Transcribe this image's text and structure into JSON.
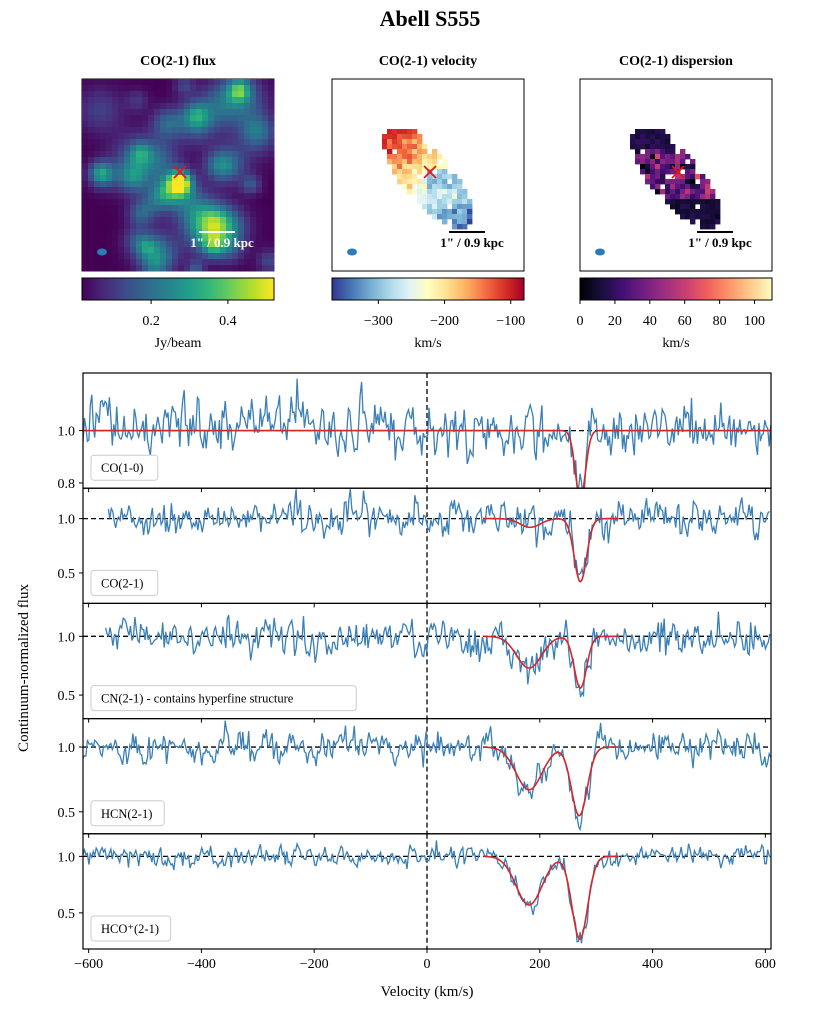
{
  "figure": {
    "title": "Abell S555"
  },
  "maps": [
    {
      "title": "CO(2-1) flux",
      "colorbar_label": "Jy/beam",
      "colormap": "viridis",
      "colorbar_range": [
        0.02,
        0.52
      ],
      "colorbar_ticks": [
        0.2,
        0.4
      ],
      "colorbar_tick_labels": [
        "0.2",
        "0.4"
      ],
      "scalebar_label": "1\" / 0.9 kpc",
      "marker": "x"
    },
    {
      "title": "CO(2-1) velocity",
      "colorbar_label": "km/s",
      "colormap": "RdYlBu_r",
      "colorbar_range": [
        -370,
        -80
      ],
      "colorbar_ticks": [
        -300,
        -200,
        -100
      ],
      "colorbar_tick_labels": [
        "−300",
        "−200",
        "−100"
      ],
      "scalebar_label": "1\" / 0.9 kpc",
      "marker": "x"
    },
    {
      "title": "CO(2-1) dispersion",
      "colorbar_label": "km/s",
      "colormap": "magma",
      "colorbar_range": [
        0,
        110
      ],
      "colorbar_ticks": [
        0,
        20,
        40,
        60,
        80,
        100
      ],
      "colorbar_tick_labels": [
        "0",
        "20",
        "40",
        "60",
        "80",
        "100"
      ],
      "scalebar_label": "1\" / 0.9 kpc",
      "marker": "x"
    }
  ],
  "chart_data": {
    "type": "line",
    "xlabel": "Velocity (km/s)",
    "ylabel": "Continuum-normalized flux",
    "xlim": [
      -610,
      610
    ],
    "x_ticks": [
      -600,
      -400,
      -200,
      0,
      200,
      400,
      600
    ],
    "x_tick_labels": [
      "−600",
      "−400",
      "−200",
      "0",
      "200",
      "400",
      "600"
    ],
    "colors": {
      "data": "#3a7fb6",
      "model": "#d62728",
      "reference": "#000000"
    },
    "panels": [
      {
        "label": "CO(1-0)",
        "ylim": [
          0.78,
          1.22
        ],
        "y_ticks": [
          0.8,
          1.0
        ],
        "y_tick_labels": [
          "0.8",
          "1.0"
        ],
        "x_range": [
          -610,
          610
        ],
        "noise": 0.05,
        "components": [
          {
            "center": 272,
            "depth": 0.26,
            "sigma": 9
          }
        ],
        "model_color_override": "#d62728"
      },
      {
        "label": "CO(2-1)",
        "ylim": [
          0.22,
          1.28
        ],
        "y_ticks": [
          0.5,
          1.0
        ],
        "y_tick_labels": [
          "0.5",
          "1.0"
        ],
        "x_range": [
          -565,
          610
        ],
        "noise": 0.075,
        "components": [
          {
            "center": 183,
            "depth": 0.08,
            "sigma": 18
          },
          {
            "center": 272,
            "depth": 0.58,
            "sigma": 11
          }
        ]
      },
      {
        "label": "CN(2-1) - contains hyperfine structure",
        "ylim": [
          0.3,
          1.28
        ],
        "y_ticks": [
          0.5,
          1.0
        ],
        "y_tick_labels": [
          "0.5",
          "1.0"
        ],
        "x_range": [
          -570,
          610
        ],
        "noise": 0.075,
        "components": [
          {
            "center": 181,
            "depth": 0.27,
            "sigma": 22
          },
          {
            "center": 272,
            "depth": 0.44,
            "sigma": 11
          }
        ]
      },
      {
        "label": "HCN(2-1)",
        "ylim": [
          0.33,
          1.22
        ],
        "y_ticks": [
          0.5,
          1.0
        ],
        "y_tick_labels": [
          "0.5",
          "1.0"
        ],
        "x_range": [
          -610,
          610
        ],
        "noise": 0.06,
        "components": [
          {
            "center": 181,
            "depth": 0.33,
            "sigma": 23
          },
          {
            "center": 270,
            "depth": 0.53,
            "sigma": 14
          }
        ]
      },
      {
        "label": "HCO⁺(2-1)",
        "ylim": [
          0.18,
          1.2
        ],
        "y_ticks": [
          0.5,
          1.0
        ],
        "y_tick_labels": [
          "0.5",
          "1.0"
        ],
        "x_range": [
          -610,
          610
        ],
        "noise": 0.045,
        "components": [
          {
            "center": 181,
            "depth": 0.43,
            "sigma": 23
          },
          {
            "center": 271,
            "depth": 0.73,
            "sigma": 14
          }
        ]
      }
    ]
  }
}
